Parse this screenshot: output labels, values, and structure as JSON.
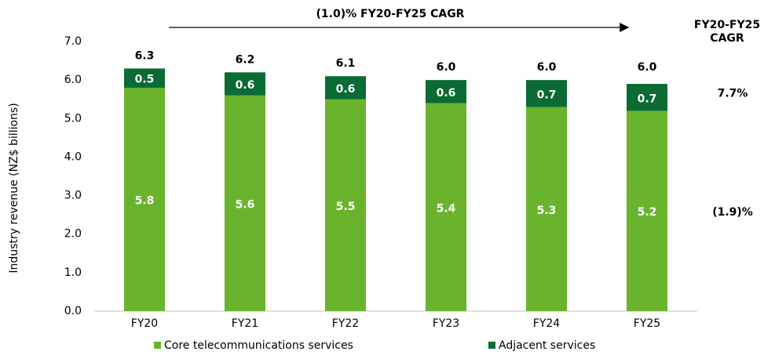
{
  "chart_data": {
    "type": "stacked-bar",
    "y_label": "Industry revenue (NZ$ billions)",
    "annotation": "(1.0)% FY20-FY25 CAGR",
    "cagr_header": "FY20-FY25 CAGR",
    "categories": [
      "FY20",
      "FY21",
      "FY22",
      "FY23",
      "FY24",
      "FY25"
    ],
    "series": [
      {
        "name": "Core telecommunications services",
        "color": "#6ab42d",
        "values": [
          5.8,
          5.6,
          5.5,
          5.4,
          5.3,
          5.2
        ],
        "cagr": "(1.9)%"
      },
      {
        "name": "Adjacent services",
        "color": "#0a6b34",
        "values": [
          0.5,
          0.6,
          0.6,
          0.6,
          0.7,
          0.7
        ],
        "cagr": "7.7%"
      }
    ],
    "totals": [
      6.3,
      6.2,
      6.1,
      6,
      6,
      6
    ],
    "total_labels": [
      "6.3",
      "6.2",
      "6.1",
      "6.0",
      "6.0",
      "6.0"
    ],
    "ylim": [
      0,
      7
    ],
    "yticks": [
      {
        "value": 0,
        "label": "0.0"
      },
      {
        "value": 1,
        "label": "1.0"
      },
      {
        "value": 2,
        "label": "2.0"
      },
      {
        "value": 3,
        "label": "3.0"
      },
      {
        "value": 4,
        "label": "4.0"
      },
      {
        "value": 5,
        "label": "5.0"
      },
      {
        "value": 6,
        "label": "6.0"
      },
      {
        "value": 7,
        "label": "7.0"
      }
    ],
    "legend": "bottom"
  }
}
